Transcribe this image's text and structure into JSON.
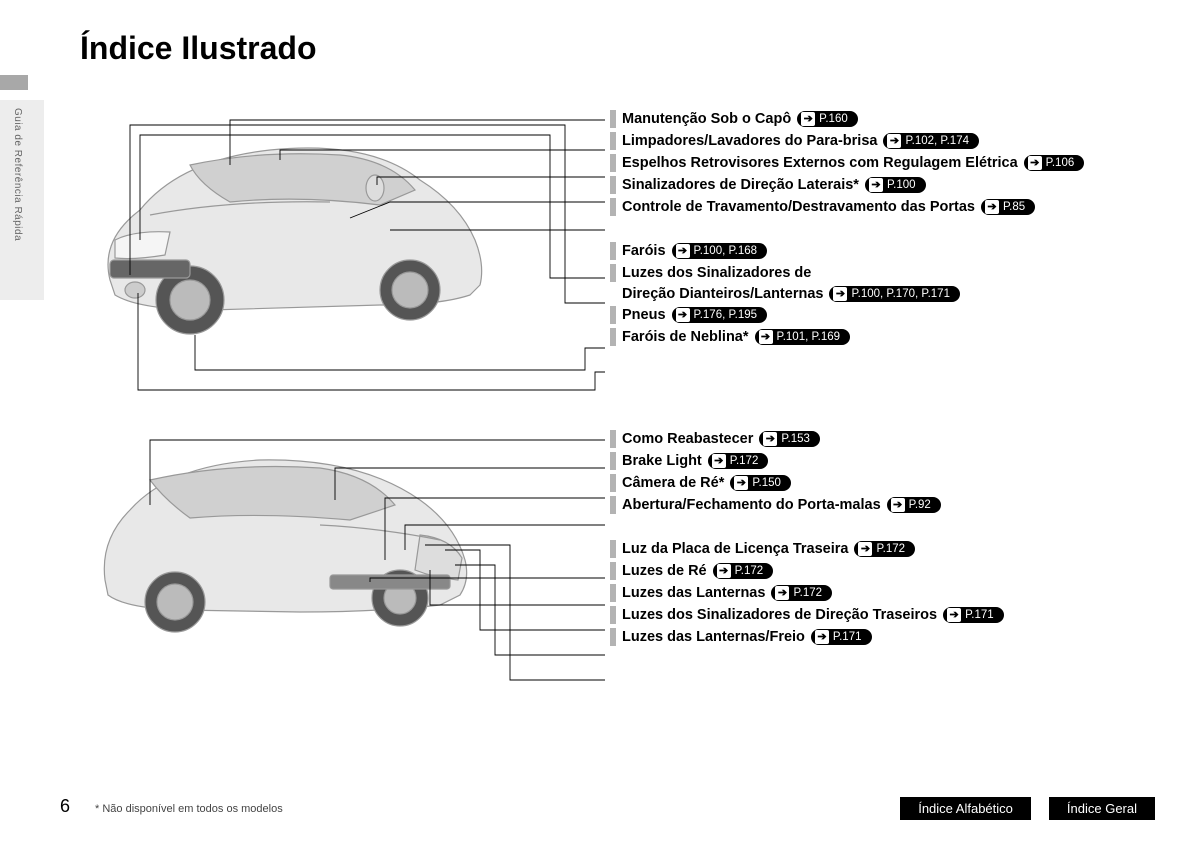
{
  "title": "Índice Ilustrado",
  "sidebar_text": "Guia de Referência Rápida",
  "page_number": "6",
  "footnote": "* Não disponível em todos os modelos",
  "arrow_glyph": "➔",
  "footer": {
    "btn1": "Índice Alfabético",
    "btn2": "Índice Geral"
  },
  "front_callouts": [
    {
      "label": "Manutenção Sob o Capô",
      "ref": "P.160"
    },
    {
      "label": "Limpadores/Lavadores do Para-brisa",
      "ref": "P.102, P.174"
    },
    {
      "label": "Espelhos Retrovisores Externos com Regulagem Elétrica",
      "ref": "P.106"
    },
    {
      "label": "Sinalizadores de Direção Laterais*",
      "ref": "P.100"
    },
    {
      "label": "Controle de Travamento/Destravamento das Portas",
      "ref": "P.85"
    },
    {
      "label": "Faróis",
      "ref": "P.100, P.168"
    },
    {
      "label": "Luzes dos Sinalizadores de",
      "label2": "Direção Dianteiros/Lanternas",
      "ref": "P.100, P.170, P.171"
    },
    {
      "label": "Pneus",
      "ref": "P.176, P.195"
    },
    {
      "label": "Faróis de Neblina*",
      "ref": "P.101, P.169"
    }
  ],
  "rear_callouts": [
    {
      "label": "Como Reabastecer",
      "ref": "P.153"
    },
    {
      "label": "Brake Light",
      "ref": "P.172"
    },
    {
      "label": "Câmera de Ré*",
      "ref": "P.150"
    },
    {
      "label": "Abertura/Fechamento do Porta-malas",
      "ref": "P.92"
    },
    {
      "label": "Luz da Placa de Licença Traseira",
      "ref": "P.172"
    },
    {
      "label": "Luzes de Ré",
      "ref": "P.172"
    },
    {
      "label": "Luzes das Lanternas",
      "ref": "P.172"
    },
    {
      "label": "Luzes dos Sinalizadores de Direção Traseiros",
      "ref": "P.171"
    },
    {
      "label": "Luzes das Lanternas/Freio",
      "ref": "P.171"
    }
  ],
  "leaders": {
    "stroke": "#000000",
    "stroke_width": 0.9
  },
  "car_style": {
    "body_fill": "#e8e8e8",
    "body_stroke": "#999999",
    "glass_fill": "#d0d0d0",
    "wheel_fill": "#555555",
    "wheel_hub": "#bbbbbb",
    "headlight": "#f5f5f5",
    "grille": "#666666"
  }
}
